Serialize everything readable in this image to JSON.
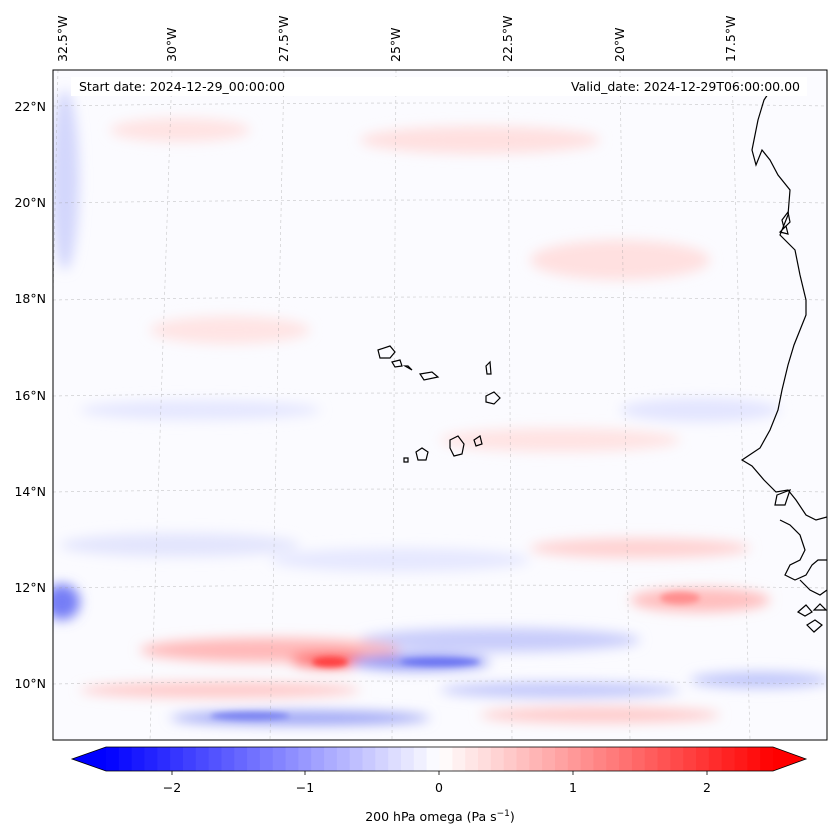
{
  "header": {
    "start_date": "Start date: 2024-12-29_00:00:00",
    "valid_date": "Valid_date: 2024-12-29T06:00:00.00"
  },
  "map": {
    "lon_labels": [
      "32.5°W",
      "30°W",
      "27.5°W",
      "25°W",
      "22.5°W",
      "20°W",
      "17.5°W"
    ],
    "lat_labels": [
      "22°N",
      "20°N",
      "18°N",
      "16°N",
      "14°N",
      "12°N",
      "10°N"
    ],
    "gridlines": "dashed",
    "field": "omega",
    "level": "200 hPa"
  },
  "colorbar": {
    "label": "200 hPa omega (Pa s",
    "label_sup": "−1",
    "label_end": ")",
    "ticks": [
      "−2",
      "−1",
      "0",
      "1",
      "2"
    ],
    "range": [
      -2.6,
      2.6
    ],
    "extend": "both",
    "colors": {
      "min": "#0000ff",
      "mid": "#ffffff",
      "max": "#ff0000"
    }
  }
}
